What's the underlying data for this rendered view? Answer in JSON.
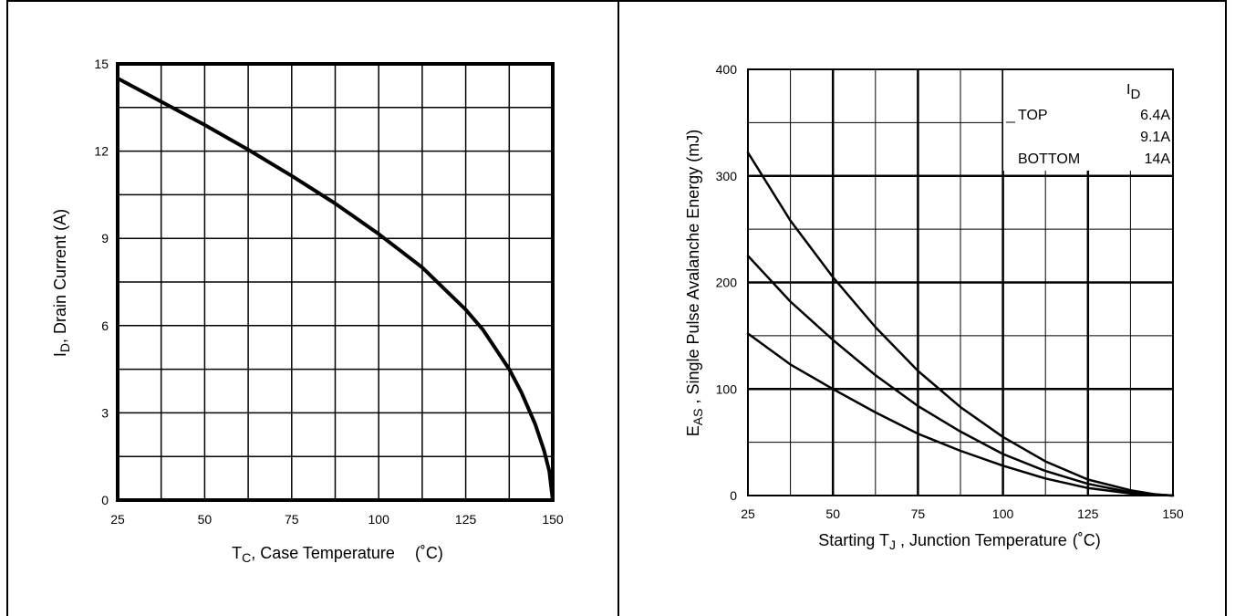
{
  "chart_data": [
    {
      "type": "line",
      "xlabel_main": "T",
      "xlabel_sub": "C",
      "xlabel_rest": ", Case Temperature",
      "xlabel_unit": "(˚C)",
      "ylabel_main": "I",
      "ylabel_sub": "D",
      "ylabel_rest": ", Drain Current (A)",
      "xlim": [
        25,
        150
      ],
      "ylim": [
        0,
        15
      ],
      "x_ticks": [
        "25",
        "50",
        "75",
        "100",
        "125",
        "150"
      ],
      "y_ticks": [
        "0",
        "3",
        "6",
        "9",
        "12",
        "15"
      ],
      "grid": true,
      "series": [
        {
          "x": [
            25,
            37.5,
            50,
            62.5,
            75,
            87.5,
            100,
            112.5,
            125,
            130,
            137.5,
            141,
            145,
            147.5,
            149,
            150
          ],
          "y": [
            14.5,
            13.7,
            12.9,
            12.05,
            11.15,
            10.2,
            9.15,
            8.0,
            6.55,
            5.85,
            4.5,
            3.7,
            2.6,
            1.7,
            1.0,
            0
          ]
        }
      ]
    },
    {
      "type": "line",
      "xlabel_main": "Starting T",
      "xlabel_sub": "J",
      "xlabel_rest": " , Junction Temperature",
      "xlabel_unit": "(˚C)",
      "ylabel_main": "E",
      "ylabel_sub": "AS",
      "ylabel_rest": " , Single Pulse Avalanche Energy (mJ)",
      "xlim": [
        25,
        150
      ],
      "ylim": [
        0,
        400
      ],
      "x_ticks": [
        "25",
        "50",
        "75",
        "100",
        "125",
        "150"
      ],
      "y_ticks": [
        "0",
        "100",
        "200",
        "300",
        "400"
      ],
      "grid": true,
      "legend": {
        "title_main": "I",
        "title_sub": "D",
        "rows": [
          {
            "label": "TOP",
            "value": "6.4A"
          },
          {
            "label": "",
            "value": "9.1A"
          },
          {
            "label": "BOTTOM",
            "value": "14A"
          }
        ],
        "placement": "top-right"
      },
      "series": [
        {
          "name": "6.4A",
          "x": [
            25,
            37.5,
            50,
            62.5,
            75,
            87.5,
            100,
            112.5,
            125,
            137.5,
            145,
            150
          ],
          "y": [
            322,
            258,
            205,
            158,
            117,
            83,
            55,
            32,
            15,
            5,
            1,
            0
          ]
        },
        {
          "name": "9.1A",
          "x": [
            25,
            37.5,
            50,
            62.5,
            75,
            87.5,
            100,
            112.5,
            125,
            137.5,
            145,
            150
          ],
          "y": [
            225,
            182,
            146,
            113,
            84,
            60,
            39,
            23,
            11,
            3,
            1,
            0
          ]
        },
        {
          "name": "14A",
          "x": [
            25,
            37.5,
            50,
            62.5,
            75,
            87.5,
            100,
            112.5,
            125,
            137.5,
            145,
            150
          ],
          "y": [
            152,
            123,
            100,
            78,
            58,
            42,
            28,
            16,
            7,
            2,
            0.5,
            0
          ]
        }
      ]
    }
  ]
}
